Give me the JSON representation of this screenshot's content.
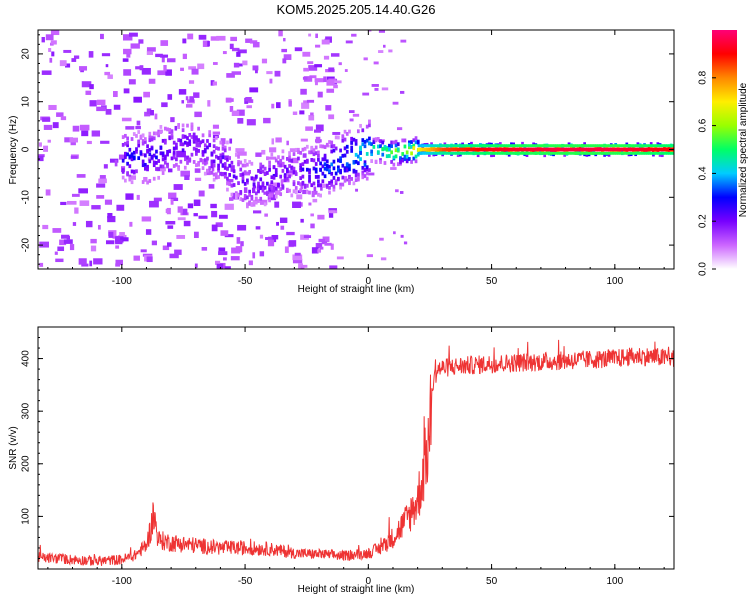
{
  "title": "KOM5.2025.205.14.40.G26",
  "chart_data": [
    {
      "type": "heatmap",
      "xlabel": "Height of straight line (km)",
      "ylabel": "Frequency (Hz)",
      "xlim": [
        -134,
        124
      ],
      "ylim": [
        -25,
        25
      ],
      "xticks": [
        -100,
        -50,
        0,
        50,
        100
      ],
      "yticks": [
        -20,
        -10,
        0,
        10,
        20
      ],
      "colorbar": {
        "label": "Normalized spectral amplitude",
        "range": [
          0,
          1
        ],
        "ticks": [
          0.0,
          0.2,
          0.4,
          0.6,
          0.8
        ],
        "colors": [
          "#ffffff",
          "#cc66ff",
          "#7700ff",
          "#0000ff",
          "#00ccff",
          "#00ff66",
          "#99ff00",
          "#ffee00",
          "#ff8800",
          "#ff0000",
          "#ff0077"
        ]
      },
      "ridge": [
        {
          "x": -100,
          "y": -1.5,
          "v": 0.25
        },
        {
          "x": -90,
          "y": -2.0,
          "v": 0.28
        },
        {
          "x": -80,
          "y": 0.5,
          "v": 0.22
        },
        {
          "x": -70,
          "y": 1.0,
          "v": 0.2
        },
        {
          "x": -60,
          "y": -2.5,
          "v": 0.22
        },
        {
          "x": -50,
          "y": -7.5,
          "v": 0.2
        },
        {
          "x": -40,
          "y": -6.0,
          "v": 0.22
        },
        {
          "x": -30,
          "y": -4.5,
          "v": 0.2
        },
        {
          "x": -20,
          "y": -4.5,
          "v": 0.3
        },
        {
          "x": -10,
          "y": -2.0,
          "v": 0.35
        },
        {
          "x": 0,
          "y": 0.0,
          "v": 0.45
        },
        {
          "x": 10,
          "y": -0.7,
          "v": 0.55
        },
        {
          "x": 20,
          "y": 0.0,
          "v": 0.7
        },
        {
          "x": 30,
          "y": 0.0,
          "v": 0.85
        },
        {
          "x": 50,
          "y": 0.0,
          "v": 0.92
        },
        {
          "x": 75,
          "y": 0.0,
          "v": 0.95
        },
        {
          "x": 100,
          "y": 0.0,
          "v": 0.95
        },
        {
          "x": 124,
          "y": 0.0,
          "v": 0.9
        }
      ]
    },
    {
      "type": "line",
      "xlabel": "Height of straight line (km)",
      "ylabel": "SNR (v/v)",
      "xlim": [
        -134,
        124
      ],
      "ylim": [
        0,
        460
      ],
      "xticks": [
        -100,
        -50,
        0,
        50,
        100
      ],
      "yticks": [
        100,
        200,
        300,
        400
      ],
      "color": "#ee3333",
      "x": [
        -134,
        -120,
        -110,
        -100,
        -95,
        -90,
        -87,
        -85,
        -80,
        -70,
        -60,
        -50,
        -40,
        -30,
        -20,
        -10,
        0,
        5,
        10,
        15,
        20,
        23,
        25,
        26,
        28,
        35,
        50,
        75,
        100,
        110,
        124
      ],
      "y": [
        22,
        18,
        15,
        18,
        25,
        45,
        100,
        55,
        50,
        45,
        40,
        40,
        38,
        30,
        28,
        25,
        30,
        40,
        60,
        90,
        130,
        200,
        260,
        350,
        380,
        385,
        390,
        395,
        400,
        405,
        400
      ]
    }
  ]
}
